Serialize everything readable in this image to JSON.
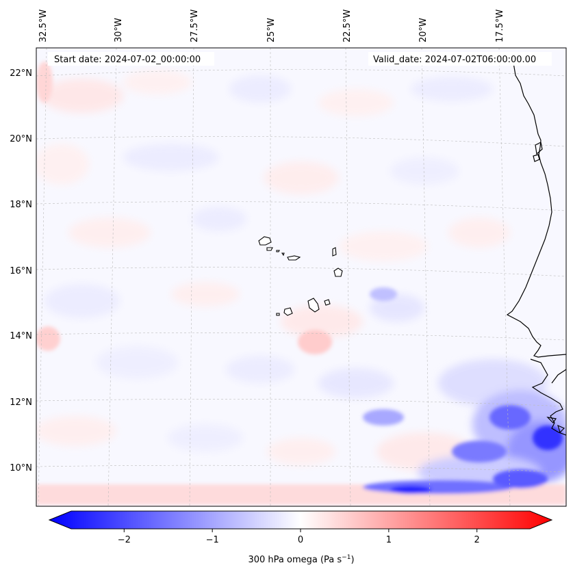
{
  "map": {
    "start_date": "Start date: 2024-07-02_00:00:00",
    "valid_date": "Valid_date: 2024-07-02T06:00:00.00",
    "lon_labels": [
      "32.5°W",
      "30°W",
      "27.5°W",
      "25°W",
      "22.5°W",
      "20°W",
      "17.5°W"
    ],
    "lat_labels": [
      "22°N",
      "20°N",
      "18°N",
      "16°N",
      "14°N",
      "12°N",
      "10°N"
    ],
    "field": "300 hPa vertical velocity (omega)"
  },
  "colorbar": {
    "label": "300 hPa omega (Pa s",
    "label_exp": "−1",
    "label_close": ")",
    "ticks": [
      "−2",
      "−1",
      "0",
      "1",
      "2"
    ],
    "tick_values": [
      -2,
      -1,
      0,
      1,
      2
    ],
    "min": -2.6,
    "max": 2.6,
    "neg_color": "#0000ff",
    "zero_color": "#ffffff",
    "pos_color": "#ff0000"
  },
  "colors": {
    "coastline": "#000000",
    "gridline": "#bbbbbb"
  }
}
